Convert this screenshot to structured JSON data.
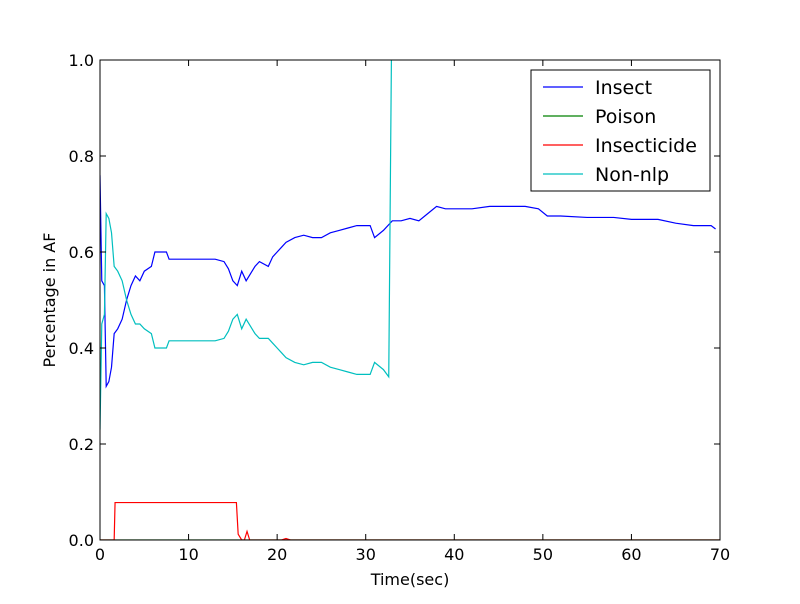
{
  "chart_data": {
    "type": "line",
    "title": "",
    "xlabel": "Time(sec)",
    "ylabel": "Percentage in AF",
    "xlim": [
      0,
      70
    ],
    "ylim": [
      0.0,
      1.0
    ],
    "x_ticks": [
      "0",
      "10",
      "20",
      "30",
      "40",
      "50",
      "60",
      "70"
    ],
    "y_ticks": [
      "0.0",
      "0.2",
      "0.4",
      "0.6",
      "0.8",
      "1.0"
    ],
    "grid": false,
    "legend_position": "top-right",
    "series": [
      {
        "name": "Insect",
        "color": "#0000ff",
        "points": [
          [
            0,
            0.76
          ],
          [
            0.2,
            0.54
          ],
          [
            0.5,
            0.53
          ],
          [
            0.7,
            0.32
          ],
          [
            1.0,
            0.33
          ],
          [
            1.3,
            0.36
          ],
          [
            1.6,
            0.43
          ],
          [
            2.0,
            0.44
          ],
          [
            2.5,
            0.46
          ],
          [
            3.0,
            0.5
          ],
          [
            3.5,
            0.53
          ],
          [
            4.0,
            0.55
          ],
          [
            4.5,
            0.54
          ],
          [
            5.0,
            0.56
          ],
          [
            5.8,
            0.57
          ],
          [
            6.2,
            0.6
          ],
          [
            7.5,
            0.6
          ],
          [
            7.8,
            0.585
          ],
          [
            9.0,
            0.585
          ],
          [
            10.0,
            0.585
          ],
          [
            11.0,
            0.585
          ],
          [
            12.5,
            0.585
          ],
          [
            13.0,
            0.585
          ],
          [
            14.0,
            0.58
          ],
          [
            14.5,
            0.565
          ],
          [
            15.0,
            0.54
          ],
          [
            15.5,
            0.53
          ],
          [
            16.0,
            0.56
          ],
          [
            16.5,
            0.54
          ],
          [
            17.5,
            0.57
          ],
          [
            18.0,
            0.58
          ],
          [
            19.0,
            0.57
          ],
          [
            19.5,
            0.59
          ],
          [
            20.0,
            0.6
          ],
          [
            20.5,
            0.61
          ],
          [
            21.0,
            0.62
          ],
          [
            22.0,
            0.63
          ],
          [
            23.0,
            0.635
          ],
          [
            24.0,
            0.63
          ],
          [
            25.0,
            0.63
          ],
          [
            26.0,
            0.64
          ],
          [
            27.0,
            0.645
          ],
          [
            28.0,
            0.65
          ],
          [
            29.0,
            0.655
          ],
          [
            30.5,
            0.655
          ],
          [
            31.0,
            0.63
          ],
          [
            32.0,
            0.645
          ],
          [
            33.0,
            0.665
          ],
          [
            34.0,
            0.665
          ],
          [
            35.0,
            0.67
          ],
          [
            36.0,
            0.665
          ],
          [
            37.0,
            0.68
          ],
          [
            38.0,
            0.695
          ],
          [
            39.0,
            0.69
          ],
          [
            40.0,
            0.69
          ],
          [
            42.0,
            0.69
          ],
          [
            44.0,
            0.695
          ],
          [
            46.0,
            0.695
          ],
          [
            48.0,
            0.695
          ],
          [
            49.5,
            0.69
          ],
          [
            50.5,
            0.675
          ],
          [
            52.0,
            0.675
          ],
          [
            55.0,
            0.672
          ],
          [
            58.0,
            0.672
          ],
          [
            60.0,
            0.668
          ],
          [
            63.0,
            0.668
          ],
          [
            65.0,
            0.66
          ],
          [
            67.0,
            0.655
          ],
          [
            68.0,
            0.655
          ],
          [
            69.0,
            0.655
          ],
          [
            69.5,
            0.648
          ]
        ]
      },
      {
        "name": "Poison",
        "color": "#008000",
        "points": [
          [
            0,
            0.0
          ],
          [
            70,
            0.0
          ]
        ]
      },
      {
        "name": "Insecticide",
        "color": "#ff0000",
        "points": [
          [
            0,
            0.0
          ],
          [
            1.6,
            0.0
          ],
          [
            1.7,
            0.078
          ],
          [
            4.0,
            0.078
          ],
          [
            8.0,
            0.078
          ],
          [
            12.0,
            0.078
          ],
          [
            15.4,
            0.078
          ],
          [
            15.6,
            0.012
          ],
          [
            16.0,
            0.0
          ],
          [
            16.3,
            0.0
          ],
          [
            16.6,
            0.018
          ],
          [
            16.9,
            0.0
          ],
          [
            20.5,
            0.0
          ],
          [
            21.0,
            0.003
          ],
          [
            21.5,
            0.0
          ],
          [
            70,
            0.0
          ]
        ]
      },
      {
        "name": "Non-nlp",
        "color": "#00bfbf",
        "points": [
          [
            0,
            0.23
          ],
          [
            0.2,
            0.45
          ],
          [
            0.5,
            0.47
          ],
          [
            0.7,
            0.68
          ],
          [
            1.0,
            0.67
          ],
          [
            1.3,
            0.64
          ],
          [
            1.6,
            0.57
          ],
          [
            2.0,
            0.56
          ],
          [
            2.5,
            0.54
          ],
          [
            3.0,
            0.5
          ],
          [
            3.5,
            0.47
          ],
          [
            4.0,
            0.45
          ],
          [
            4.5,
            0.45
          ],
          [
            5.0,
            0.44
          ],
          [
            5.8,
            0.43
          ],
          [
            6.2,
            0.4
          ],
          [
            7.5,
            0.4
          ],
          [
            7.8,
            0.415
          ],
          [
            9.0,
            0.415
          ],
          [
            10.0,
            0.415
          ],
          [
            11.0,
            0.415
          ],
          [
            12.5,
            0.415
          ],
          [
            13.0,
            0.415
          ],
          [
            14.0,
            0.42
          ],
          [
            14.5,
            0.435
          ],
          [
            15.0,
            0.46
          ],
          [
            15.5,
            0.47
          ],
          [
            16.0,
            0.44
          ],
          [
            16.5,
            0.46
          ],
          [
            17.5,
            0.43
          ],
          [
            18.0,
            0.42
          ],
          [
            19.0,
            0.42
          ],
          [
            19.5,
            0.41
          ],
          [
            20.0,
            0.4
          ],
          [
            20.5,
            0.39
          ],
          [
            21.0,
            0.38
          ],
          [
            22.0,
            0.37
          ],
          [
            23.0,
            0.365
          ],
          [
            24.0,
            0.37
          ],
          [
            25.0,
            0.37
          ],
          [
            26.0,
            0.36
          ],
          [
            27.0,
            0.355
          ],
          [
            28.0,
            0.35
          ],
          [
            29.0,
            0.345
          ],
          [
            30.5,
            0.345
          ],
          [
            31.0,
            0.37
          ],
          [
            32.0,
            0.355
          ],
          [
            32.6,
            0.34
          ],
          [
            32.9,
            1.0
          ]
        ]
      }
    ]
  }
}
